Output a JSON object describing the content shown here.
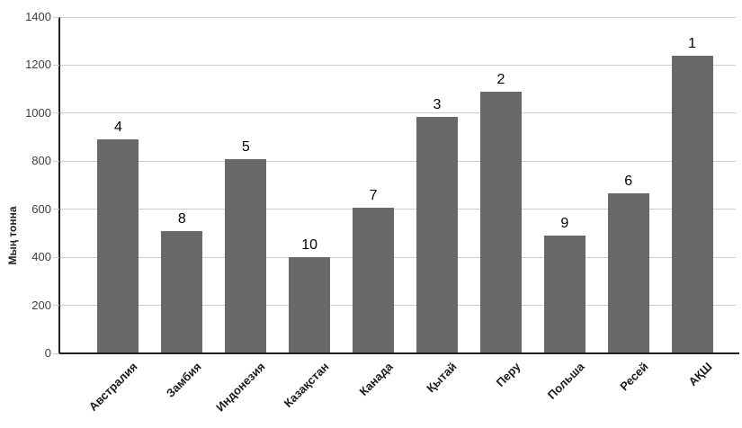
{
  "chart_data": {
    "type": "bar",
    "title": "",
    "xlabel": "",
    "ylabel": "Мың тонна",
    "categories": [
      "Австралия",
      "Замбия",
      "Индонезия",
      "Казақстан",
      "Канада",
      "Қытай",
      "Перу",
      "Польша",
      "Ресей",
      "АҚШ"
    ],
    "values": [
      890,
      510,
      810,
      400,
      605,
      985,
      1090,
      490,
      665,
      1240
    ],
    "bar_labels": [
      "4",
      "8",
      "5",
      "10",
      "7",
      "3",
      "2",
      "9",
      "6",
      "1"
    ],
    "ylim": [
      0,
      1400
    ],
    "yticks": [
      0,
      200,
      400,
      600,
      800,
      1000,
      1200,
      1400
    ],
    "grid": true,
    "legend": "none",
    "colors": {
      "bar": "#686868",
      "gridline": "#cccccc",
      "axis": "#212121",
      "tick_text": "#404040",
      "label_text": "#000000",
      "background": "#ffffff"
    }
  }
}
